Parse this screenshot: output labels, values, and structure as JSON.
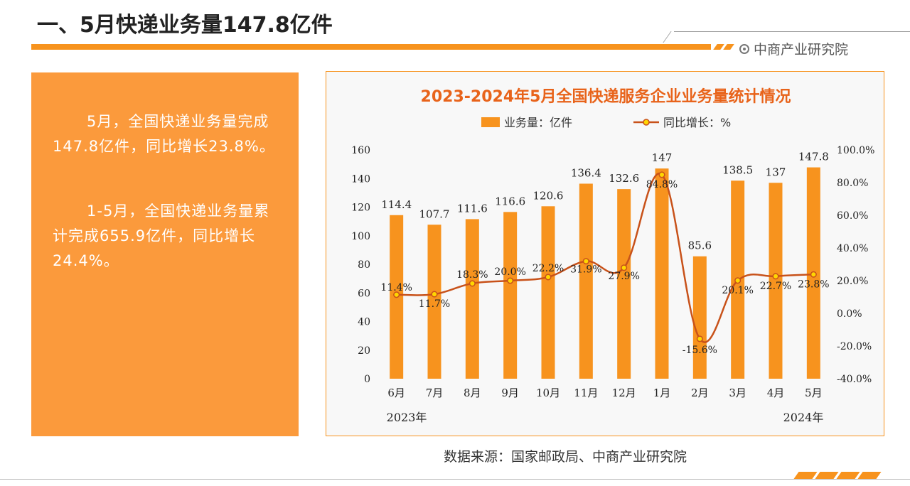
{
  "page": {
    "title": "一、5月快递业务量147.8亿件",
    "brand": "中商产业研究院",
    "source": "数据来源：国家邮政局、中商产业研究院"
  },
  "summary": {
    "p1": "5月，全国快递业务量完成147.8亿件，同比增长23.8%。",
    "p2": "1-5月，全国快递业务量累计完成655.9亿件，同比增长24.4%。"
  },
  "colors": {
    "accent": "#f7931e",
    "panel": "#fb9a3c",
    "line": "#c8521a",
    "marker_fill": "#ffd700",
    "title_red": "#e8631a"
  },
  "chart_data": {
    "type": "bar",
    "title": "2023-2024年5月全国快递服务企业业务量统计情况",
    "categories": [
      "6月",
      "7月",
      "8月",
      "9月",
      "10月",
      "11月",
      "12月",
      "1月",
      "2月",
      "3月",
      "4月",
      "5月"
    ],
    "year_labels": {
      "start": "2023年",
      "end": "2024年"
    },
    "series": [
      {
        "name": "业务量：亿件",
        "type": "bar",
        "axis": "left",
        "values": [
          114.4,
          107.7,
          111.6,
          116.6,
          120.6,
          136.4,
          132.6,
          147,
          85.6,
          138.5,
          137,
          147.8
        ],
        "labels": [
          "114.4",
          "107.7",
          "111.6",
          "116.6",
          "120.6",
          "136.4",
          "132.6",
          "147",
          "85.6",
          "138.5",
          "137",
          "147.8"
        ]
      },
      {
        "name": "同比增长：%",
        "type": "line",
        "axis": "right",
        "values": [
          11.4,
          11.7,
          18.3,
          20.0,
          22.2,
          31.9,
          27.9,
          84.8,
          -15.6,
          20.1,
          22.7,
          23.8
        ],
        "labels": [
          "11.4%",
          "11.7%",
          "18.3%",
          "20.0%",
          "22.2%",
          "31.9%",
          "27.9%",
          "84.8%",
          "-15.6%",
          "20.1%",
          "22.7%",
          "23.8%"
        ]
      }
    ],
    "y_left": {
      "min": 0,
      "max": 160,
      "ticks": [
        "0",
        "20",
        "40",
        "60",
        "80",
        "100",
        "120",
        "140",
        "160"
      ]
    },
    "y_right": {
      "min": -40,
      "max": 100,
      "ticks": [
        "-40.0%",
        "-20.0%",
        "0.0%",
        "20.0%",
        "40.0%",
        "60.0%",
        "80.0%",
        "100.0%"
      ]
    },
    "legend_position": "top",
    "grid": false
  }
}
